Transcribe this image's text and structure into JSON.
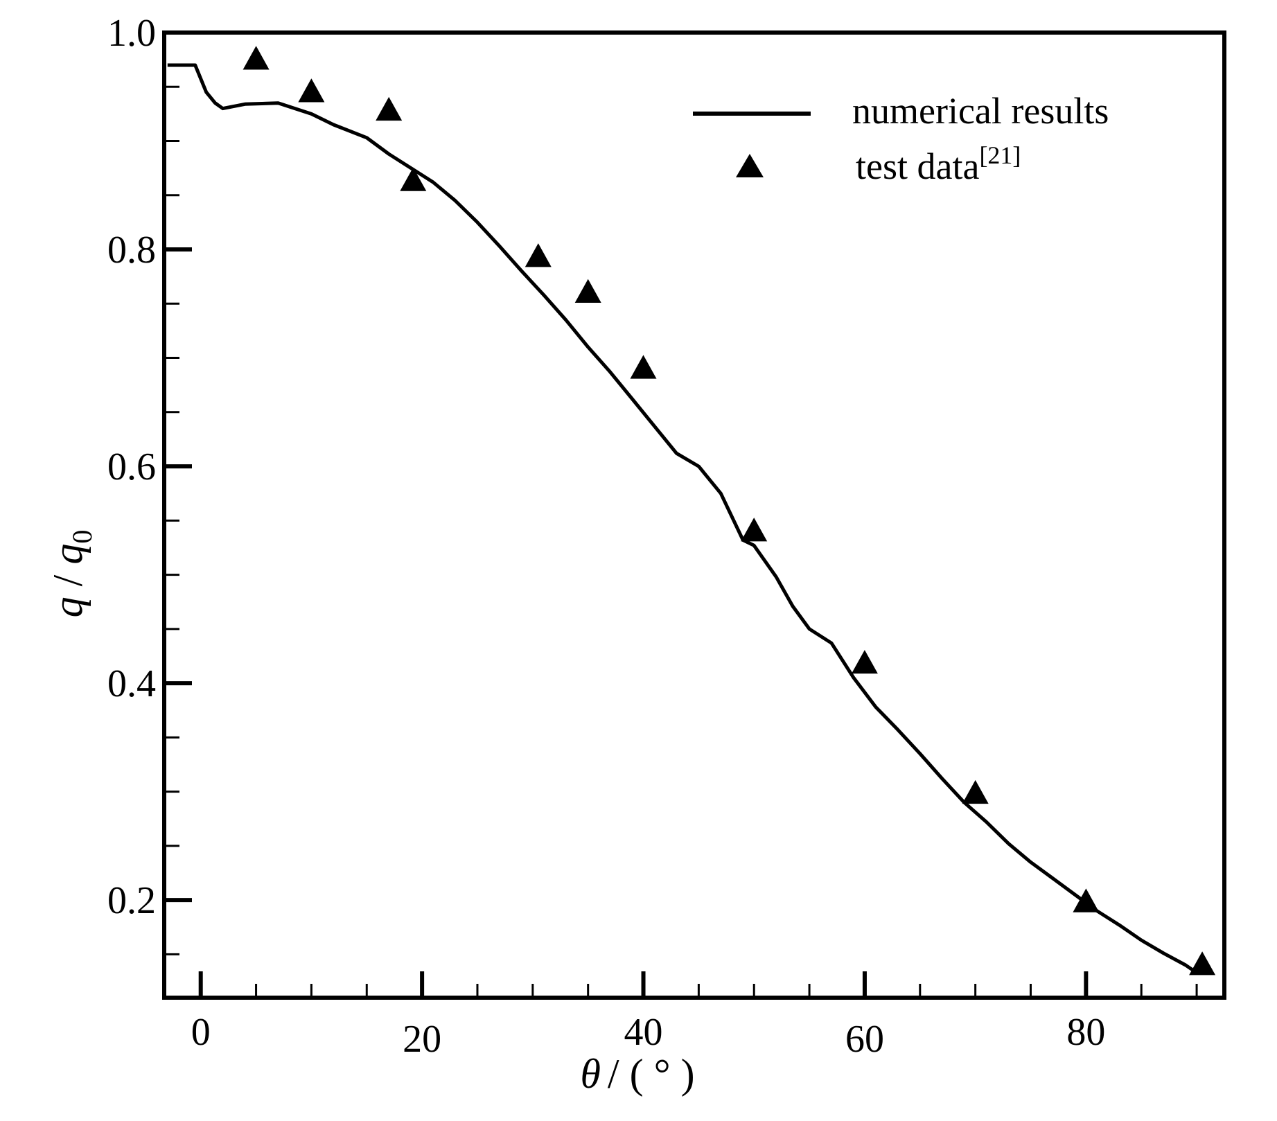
{
  "chart_data": {
    "type": "line",
    "title": "",
    "xlabel": {
      "symbol": "θ",
      "unit": "/ ( ° )"
    },
    "ylabel": {
      "symbol": "q",
      "sep": " / ",
      "symbol2": "q",
      "sub": "0"
    },
    "xlim": [
      -3.3,
      92.5
    ],
    "ylim": [
      0.11,
      1.0
    ],
    "x_ticks": [
      0,
      20,
      40,
      60,
      80
    ],
    "x_tick_labels": [
      "0",
      "20",
      "40",
      "60",
      "80"
    ],
    "y_ticks": [
      0.2,
      0.4,
      0.6,
      0.8,
      1.0
    ],
    "y_tick_labels": [
      "0.2",
      "0.4",
      "0.6",
      "0.8",
      "1.0"
    ],
    "grid": false,
    "legend_position": "top-right",
    "series": [
      {
        "name": "numerical results",
        "style": "line",
        "color": "#000000",
        "points": [
          [
            -3,
            0.97
          ],
          [
            -0.5,
            0.97
          ],
          [
            0.5,
            0.945
          ],
          [
            1.3,
            0.935
          ],
          [
            2,
            0.93
          ],
          [
            4,
            0.934
          ],
          [
            7,
            0.935
          ],
          [
            10,
            0.925
          ],
          [
            12,
            0.915
          ],
          [
            15,
            0.903
          ],
          [
            17,
            0.888
          ],
          [
            19,
            0.875
          ],
          [
            21,
            0.862
          ],
          [
            23,
            0.845
          ],
          [
            25,
            0.825
          ],
          [
            27,
            0.803
          ],
          [
            29,
            0.78
          ],
          [
            31,
            0.758
          ],
          [
            33,
            0.735
          ],
          [
            35,
            0.71
          ],
          [
            37,
            0.687
          ],
          [
            39,
            0.662
          ],
          [
            41,
            0.637
          ],
          [
            43,
            0.612
          ],
          [
            45,
            0.6
          ],
          [
            47,
            0.575
          ],
          [
            49,
            0.532
          ],
          [
            50,
            0.527
          ],
          [
            52,
            0.498
          ],
          [
            53.5,
            0.471
          ],
          [
            55,
            0.45
          ],
          [
            57,
            0.437
          ],
          [
            59,
            0.405
          ],
          [
            61,
            0.378
          ],
          [
            63,
            0.357
          ],
          [
            65,
            0.335
          ],
          [
            67,
            0.312
          ],
          [
            69,
            0.29
          ],
          [
            71,
            0.272
          ],
          [
            73,
            0.252
          ],
          [
            75,
            0.235
          ],
          [
            77,
            0.22
          ],
          [
            79,
            0.205
          ],
          [
            81,
            0.19
          ],
          [
            83,
            0.177
          ],
          [
            85,
            0.163
          ],
          [
            87,
            0.151
          ],
          [
            89,
            0.14
          ],
          [
            90,
            0.133
          ]
        ]
      },
      {
        "name": "test data",
        "name_sup": "[21]",
        "style": "triangle",
        "color": "#000000",
        "points": [
          [
            5,
            0.975
          ],
          [
            10,
            0.945
          ],
          [
            17,
            0.928
          ],
          [
            19.2,
            0.863
          ],
          [
            30.5,
            0.793
          ],
          [
            35,
            0.76
          ],
          [
            40,
            0.69
          ],
          [
            50,
            0.54
          ],
          [
            60,
            0.418
          ],
          [
            70,
            0.298
          ],
          [
            80,
            0.198
          ],
          [
            90.5,
            0.14
          ]
        ]
      }
    ]
  }
}
